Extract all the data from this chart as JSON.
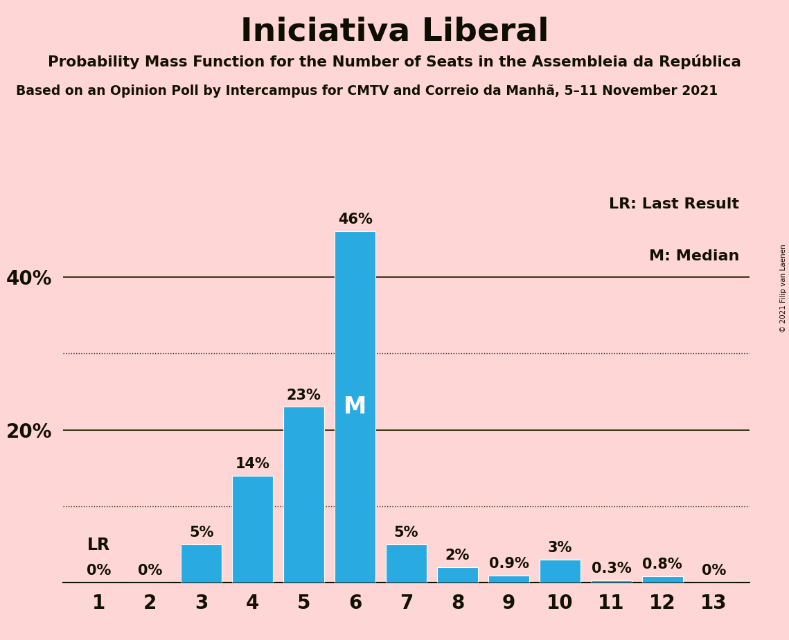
{
  "title": "Iniciativa Liberal",
  "subtitle1": "Probability Mass Function for the Number of Seats in the Assembleia da República",
  "subtitle2": "Based on an Opinion Poll by Intercampus for CMTV and Correio da Manhã, 5–11 November 2021",
  "subtitle2_display": "sed on an Opinion Poll by Intercampus for CMTV and Correio da Manhã, 5–11 November 20",
  "copyright": "© 2021 Filip van Laenen",
  "categories": [
    1,
    2,
    3,
    4,
    5,
    6,
    7,
    8,
    9,
    10,
    11,
    12,
    13
  ],
  "values": [
    0,
    0,
    5,
    14,
    23,
    46,
    5,
    2,
    0.9,
    3,
    0.3,
    0.8,
    0
  ],
  "labels": [
    "0%",
    "0%",
    "5%",
    "14%",
    "23%",
    "46%",
    "5%",
    "2%",
    "0.9%",
    "3%",
    "0.3%",
    "0.8%",
    "0%"
  ],
  "bar_color": "#29ABE2",
  "background_color": "#FFD6D6",
  "text_color": "#111100",
  "title_color": "#0d0d00",
  "median_bar": 6,
  "lr_bar": 1,
  "median_label": "M",
  "lr_label": "LR",
  "legend_lr": "LR: Last Result",
  "legend_m": "M: Median",
  "solid_grid_lines": [
    20,
    40
  ],
  "dotted_grid_lines": [
    10,
    30
  ],
  "ylim": [
    0,
    52
  ],
  "bar_width": 0.8
}
